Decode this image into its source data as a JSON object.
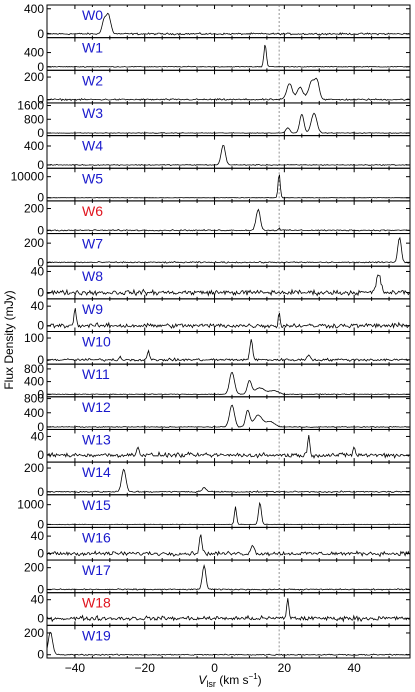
{
  "chart_data": {
    "type": "line",
    "xlabel_main": "V",
    "xlabel_sub": "lsr",
    "xlabel_unit": " (km s",
    "xlabel_exp": "−1",
    "xlabel_close": ")",
    "ylabel": "Flux Density (mJy)",
    "xlim": [
      -48,
      56
    ],
    "xticks": [
      -40,
      -20,
      0,
      20,
      40
    ],
    "tick_labels": [
      "−40",
      "−20",
      "0",
      "20",
      "40"
    ],
    "dashed_line_x": 18.5,
    "grid": false,
    "label_color_default": "#1a1acc",
    "label_color_alert": "#e0141e",
    "panels": [
      {
        "name": "W0",
        "color": "#1a1acc",
        "ylim": [
          -60,
          460
        ],
        "yticks": [
          0,
          400
        ],
        "ytick_labels": [
          "0",
          "400"
        ],
        "noise": 12,
        "peaks": [
          [
            -30.5,
            320,
            0.7
          ],
          [
            -31.8,
            180,
            0.5
          ]
        ]
      },
      {
        "name": "W1",
        "color": "#1a1acc",
        "ylim": [
          -100,
          820
        ],
        "yticks": [
          0,
          400
        ],
        "ytick_labels": [
          "0",
          "400"
        ],
        "noise": 10,
        "peaks": [
          [
            14.5,
            640,
            0.35
          ]
        ]
      },
      {
        "name": "W2",
        "color": "#1a1acc",
        "ylim": [
          -30,
          260
        ],
        "yticks": [
          0,
          200
        ],
        "ytick_labels": [
          "0",
          "200"
        ],
        "noise": 6,
        "peaks": [
          [
            21.5,
            140,
            0.8
          ],
          [
            24.5,
            110,
            0.8
          ],
          [
            28,
            170,
            1.0
          ],
          [
            29.5,
            120,
            0.6
          ]
        ]
      },
      {
        "name": "W3",
        "color": "#1a1acc",
        "ylim": [
          -150,
          1750
        ],
        "yticks": [
          0,
          800,
          1600
        ],
        "ytick_labels": [
          "0",
          "800",
          "1600"
        ],
        "noise": 15,
        "peaks": [
          [
            21,
            300,
            0.6
          ],
          [
            25,
            1100,
            0.6
          ],
          [
            28.5,
            1150,
            0.8
          ]
        ]
      },
      {
        "name": "W4",
        "color": "#1a1acc",
        "ylim": [
          -70,
          620
        ],
        "yticks": [
          0,
          400
        ],
        "ytick_labels": [
          "0",
          "400"
        ],
        "noise": 8,
        "peaks": [
          [
            2.5,
            420,
            0.6
          ]
        ]
      },
      {
        "name": "W5",
        "color": "#1a1acc",
        "ylim": [
          -1500,
          14000
        ],
        "yticks": [
          0,
          10000
        ],
        "ytick_labels": [
          "0",
          "10000"
        ],
        "noise": 80,
        "peaks": [
          [
            18.5,
            11500,
            0.3
          ]
        ]
      },
      {
        "name": "W6",
        "color": "#e0141e",
        "ylim": [
          -30,
          270
        ],
        "yticks": [
          0,
          200
        ],
        "ytick_labels": [
          "0",
          "200"
        ],
        "noise": 5,
        "peaks": [
          [
            12.5,
            190,
            0.6
          ],
          [
            18.5,
            25,
            0.2
          ]
        ]
      },
      {
        "name": "W7",
        "color": "#1a1acc",
        "ylim": [
          -40,
          300
        ],
        "yticks": [
          0,
          200
        ],
        "ytick_labels": [
          "0",
          "200"
        ],
        "noise": 6,
        "peaks": [
          [
            53,
            260,
            0.5
          ]
        ]
      },
      {
        "name": "W8",
        "color": "#1a1acc",
        "ylim": [
          -12,
          50
        ],
        "yticks": [
          0,
          40
        ],
        "ytick_labels": [
          "0",
          "40"
        ],
        "noise": 4,
        "peaks": [
          [
            47,
            35,
            0.6
          ]
        ]
      },
      {
        "name": "W9",
        "color": "#1a1acc",
        "ylim": [
          -12,
          55
        ],
        "yticks": [
          0,
          40
        ],
        "ytick_labels": [
          "0",
          "40"
        ],
        "noise": 4,
        "peaks": [
          [
            -40,
            38,
            0.3
          ],
          [
            18.5,
            30,
            0.2
          ]
        ]
      },
      {
        "name": "W10",
        "color": "#1a1acc",
        "ylim": [
          -20,
          130
        ],
        "yticks": [
          0,
          100
        ],
        "ytick_labels": [
          "0",
          "100"
        ],
        "noise": 5,
        "peaks": [
          [
            10.5,
            90,
            0.4
          ],
          [
            -19,
            40,
            0.3
          ],
          [
            27,
            25,
            0.4
          ],
          [
            -27,
            15,
            0.3
          ]
        ]
      },
      {
        "name": "W11",
        "color": "#1a1acc",
        "ylim": [
          -80,
          950
        ],
        "yticks": [
          0,
          400,
          800
        ],
        "ytick_labels": [
          "0",
          "400",
          "800"
        ],
        "noise": 10,
        "peaks": [
          [
            5,
            700,
            0.7
          ],
          [
            10,
            420,
            0.6
          ],
          [
            13,
            200,
            1.4
          ],
          [
            17,
            120,
            1.2
          ]
        ]
      },
      {
        "name": "W12",
        "color": "#1a1acc",
        "ylim": [
          -70,
          850
        ],
        "yticks": [
          0,
          400,
          800
        ],
        "ytick_labels": [
          "0",
          "400",
          "800"
        ],
        "noise": 10,
        "peaks": [
          [
            5,
            620,
            0.7
          ],
          [
            9.5,
            460,
            0.6
          ],
          [
            12.5,
            330,
            1.2
          ],
          [
            16,
            150,
            1.2
          ]
        ]
      },
      {
        "name": "W13",
        "color": "#1a1acc",
        "ylim": [
          -15,
          55
        ],
        "yticks": [
          0,
          40
        ],
        "ytick_labels": [
          "0",
          "40"
        ],
        "noise": 4,
        "peaks": [
          [
            27,
            42,
            0.3
          ],
          [
            -22,
            18,
            0.4
          ],
          [
            40,
            18,
            0.3
          ]
        ]
      },
      {
        "name": "W14",
        "color": "#1a1acc",
        "ylim": [
          -25,
          250
        ],
        "yticks": [
          0,
          200
        ],
        "ytick_labels": [
          "0",
          "200"
        ],
        "noise": 5,
        "peaks": [
          [
            -26,
            190,
            0.6
          ],
          [
            -3,
            35,
            0.6
          ]
        ]
      },
      {
        "name": "W15",
        "color": "#1a1acc",
        "ylim": [
          -150,
          1500
        ],
        "yticks": [
          0,
          1000
        ],
        "ytick_labels": [
          "0",
          "1000"
        ],
        "noise": 12,
        "peaks": [
          [
            6,
            900,
            0.3
          ],
          [
            13,
            1100,
            0.4
          ]
        ]
      },
      {
        "name": "W16",
        "color": "#1a1acc",
        "ylim": [
          -15,
          60
        ],
        "yticks": [
          0,
          40
        ],
        "ytick_labels": [
          "0",
          "40"
        ],
        "noise": 4,
        "peaks": [
          [
            -4,
            42,
            0.4
          ],
          [
            11,
            18,
            0.5
          ]
        ]
      },
      {
        "name": "W17",
        "color": "#1a1acc",
        "ylim": [
          -30,
          270
        ],
        "yticks": [
          0,
          200
        ],
        "ytick_labels": [
          "0",
          "200"
        ],
        "noise": 5,
        "peaks": [
          [
            -3,
            220,
            0.5
          ]
        ]
      },
      {
        "name": "W18",
        "color": "#e0141e",
        "ylim": [
          -15,
          55
        ],
        "yticks": [
          0,
          40
        ],
        "ytick_labels": [
          "0",
          "40"
        ],
        "noise": 4,
        "peaks": [
          [
            21,
            45,
            0.3
          ]
        ]
      },
      {
        "name": "W19",
        "color": "#1a1acc",
        "ylim": [
          -30,
          270
        ],
        "yticks": [
          0,
          200
        ],
        "ytick_labels": [
          "0",
          "200"
        ],
        "noise": 5,
        "peaks": [
          [
            -47,
            210,
            0.6
          ]
        ]
      }
    ]
  }
}
